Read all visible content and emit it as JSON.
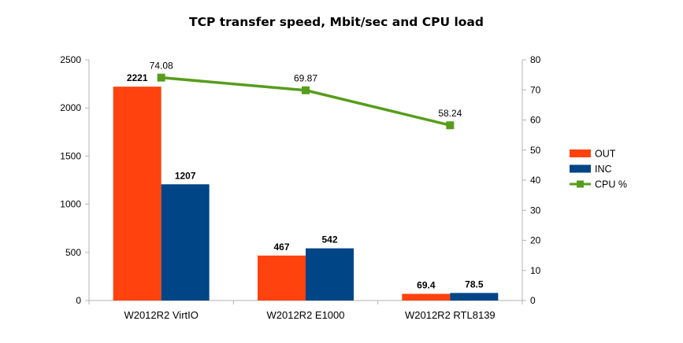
{
  "chart_data": {
    "type": "bar",
    "title": "TCP transfer speed, Mbit/sec and CPU load",
    "categories": [
      "W2012R2 VirtIO",
      "W2012R2 E1000",
      "W2012R2 RTL8139"
    ],
    "series": [
      {
        "name": "OUT",
        "type": "bar",
        "axis": "left",
        "color": "#ff420e",
        "values": [
          2221,
          467,
          69.4
        ],
        "labels": [
          "2221",
          "467",
          "69.4"
        ]
      },
      {
        "name": "INC",
        "type": "bar",
        "axis": "left",
        "color": "#004586",
        "values": [
          1207,
          542,
          78.5
        ],
        "labels": [
          "1207",
          "542",
          "78.5"
        ]
      },
      {
        "name": "CPU %",
        "type": "line",
        "axis": "right",
        "color": "#579d1c",
        "values": [
          74.08,
          69.87,
          58.24
        ],
        "labels": [
          "74.08",
          "69.87",
          "58.24"
        ]
      }
    ],
    "y_left": {
      "min": 0,
      "max": 2500,
      "ticks": [
        "0",
        "500",
        "1000",
        "1500",
        "2000",
        "2500"
      ]
    },
    "y_right": {
      "min": 0,
      "max": 80,
      "ticks": [
        "0",
        "10",
        "20",
        "30",
        "40",
        "50",
        "60",
        "70",
        "80"
      ]
    },
    "xlabel": "",
    "ylabel": "",
    "grid": false,
    "legend_position": "right"
  }
}
